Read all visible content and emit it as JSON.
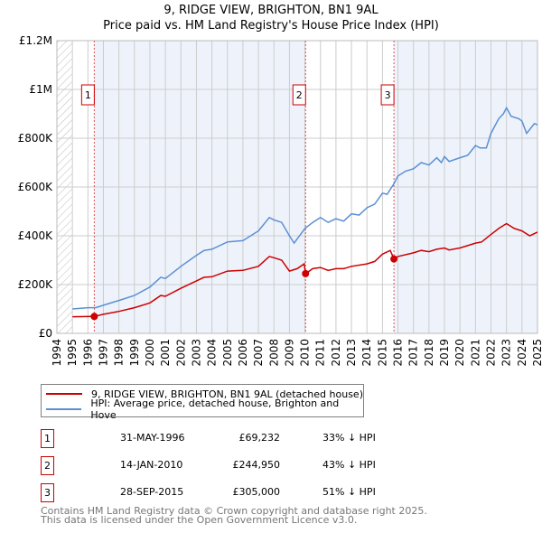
{
  "chart_data": {
    "type": "line",
    "title": "9, RIDGE VIEW, BRIGHTON, BN1 9AL",
    "subtitle": "Price paid vs. HM Land Registry's House Price Index (HPI)",
    "xlim": [
      1994,
      2025
    ],
    "ylim": [
      0,
      1200000
    ],
    "y_ticks": [
      {
        "v": 0,
        "label": "£0"
      },
      {
        "v": 200000,
        "label": "£200K"
      },
      {
        "v": 400000,
        "label": "£400K"
      },
      {
        "v": 600000,
        "label": "£600K"
      },
      {
        "v": 800000,
        "label": "£800K"
      },
      {
        "v": 1000000,
        "label": "£1M"
      },
      {
        "v": 1200000,
        "label": "£1.2M"
      }
    ],
    "x_ticks": [
      "1994",
      "1995",
      "1996",
      "1997",
      "1998",
      "1999",
      "2000",
      "2001",
      "2002",
      "2003",
      "2004",
      "2005",
      "2006",
      "2007",
      "2008",
      "2009",
      "2010",
      "2011",
      "2012",
      "2013",
      "2014",
      "2015",
      "2016",
      "2017",
      "2018",
      "2019",
      "2020",
      "2021",
      "2022",
      "2023",
      "2024",
      "2025"
    ],
    "grid": true,
    "colors": {
      "property": "#cc0000",
      "hpi": "#5b8fd4",
      "shade": "#eef3fb"
    },
    "series": [
      {
        "name": "9, RIDGE VIEW, BRIGHTON, BN1 9AL (detached house)",
        "color": "#cc0000",
        "x": [
          1995,
          1996.41,
          1997,
          1998,
          1999,
          2000,
          2000.7,
          2001,
          2002,
          2003,
          2003.5,
          2004,
          2005,
          2006,
          2007,
          2007.7,
          2008,
          2008.5,
          2009,
          2009.5,
          2009.95,
          2010.04,
          2010.5,
          2011,
          2011.5,
          2012,
          2012.5,
          2013,
          2014,
          2014.5,
          2015,
          2015.5,
          2015.74,
          2016,
          2017,
          2017.5,
          2018,
          2018.5,
          2019,
          2019.3,
          2020,
          2021,
          2021.4,
          2022,
          2022.5,
          2023,
          2023.5,
          2024,
          2024.5,
          2025
        ],
        "y": [
          68000,
          69232,
          78000,
          90000,
          105000,
          125000,
          155000,
          152000,
          185000,
          215000,
          230000,
          232000,
          255000,
          258000,
          275000,
          315000,
          310000,
          300000,
          255000,
          265000,
          285000,
          244950,
          265000,
          270000,
          258000,
          265000,
          265000,
          275000,
          285000,
          295000,
          325000,
          340000,
          305000,
          315000,
          330000,
          340000,
          335000,
          345000,
          350000,
          342000,
          350000,
          370000,
          375000,
          405000,
          430000,
          450000,
          430000,
          420000,
          400000,
          415000
        ]
      },
      {
        "name": "HPI: Average price, detached house, Brighton and Hove",
        "color": "#5b8fd4",
        "x": [
          1995,
          1996,
          1996.5,
          1997,
          1998,
          1999,
          2000,
          2000.7,
          2001,
          2002,
          2003,
          2003.5,
          2004,
          2005,
          2006,
          2007,
          2007.7,
          2008,
          2008.5,
          2009,
          2009.3,
          2010,
          2010.5,
          2011,
          2011.5,
          2012,
          2012.5,
          2013,
          2013.5,
          2014,
          2014.5,
          2015,
          2015.3,
          2015.75,
          2016,
          2016.5,
          2017,
          2017.5,
          2018,
          2018.5,
          2018.8,
          2019,
          2019.3,
          2020,
          2020.5,
          2021,
          2021.3,
          2021.7,
          2022,
          2022.5,
          2022.8,
          2023,
          2023.3,
          2023.8,
          2024,
          2024.3,
          2024.8,
          2025
        ],
        "y": [
          100000,
          105000,
          105000,
          115000,
          135000,
          155000,
          190000,
          230000,
          225000,
          275000,
          320000,
          340000,
          345000,
          375000,
          380000,
          420000,
          475000,
          465000,
          455000,
          400000,
          370000,
          430000,
          455000,
          475000,
          455000,
          470000,
          460000,
          490000,
          485000,
          515000,
          530000,
          575000,
          570000,
          615000,
          645000,
          665000,
          675000,
          700000,
          690000,
          720000,
          700000,
          725000,
          705000,
          720000,
          730000,
          770000,
          760000,
          760000,
          820000,
          880000,
          900000,
          925000,
          890000,
          880000,
          870000,
          820000,
          860000,
          855000
        ]
      }
    ],
    "sales": [
      {
        "id": "1",
        "x": 1996.41,
        "y": 69232,
        "date": "31-MAY-1996",
        "price": "£69,232",
        "hpi": "33% ↓ HPI"
      },
      {
        "id": "2",
        "x": 2010.04,
        "y": 244950,
        "date": "14-JAN-2010",
        "price": "£244,950",
        "hpi": "43% ↓ HPI"
      },
      {
        "id": "3",
        "x": 2015.74,
        "y": 305000,
        "date": "28-SEP-2015",
        "price": "£305,000",
        "hpi": "51% ↓ HPI"
      }
    ],
    "legend_placement": "below"
  },
  "footer": {
    "line1": "Contains HM Land Registry data © Crown copyright and database right 2025.",
    "line2": "This data is licensed under the Open Government Licence v3.0."
  }
}
